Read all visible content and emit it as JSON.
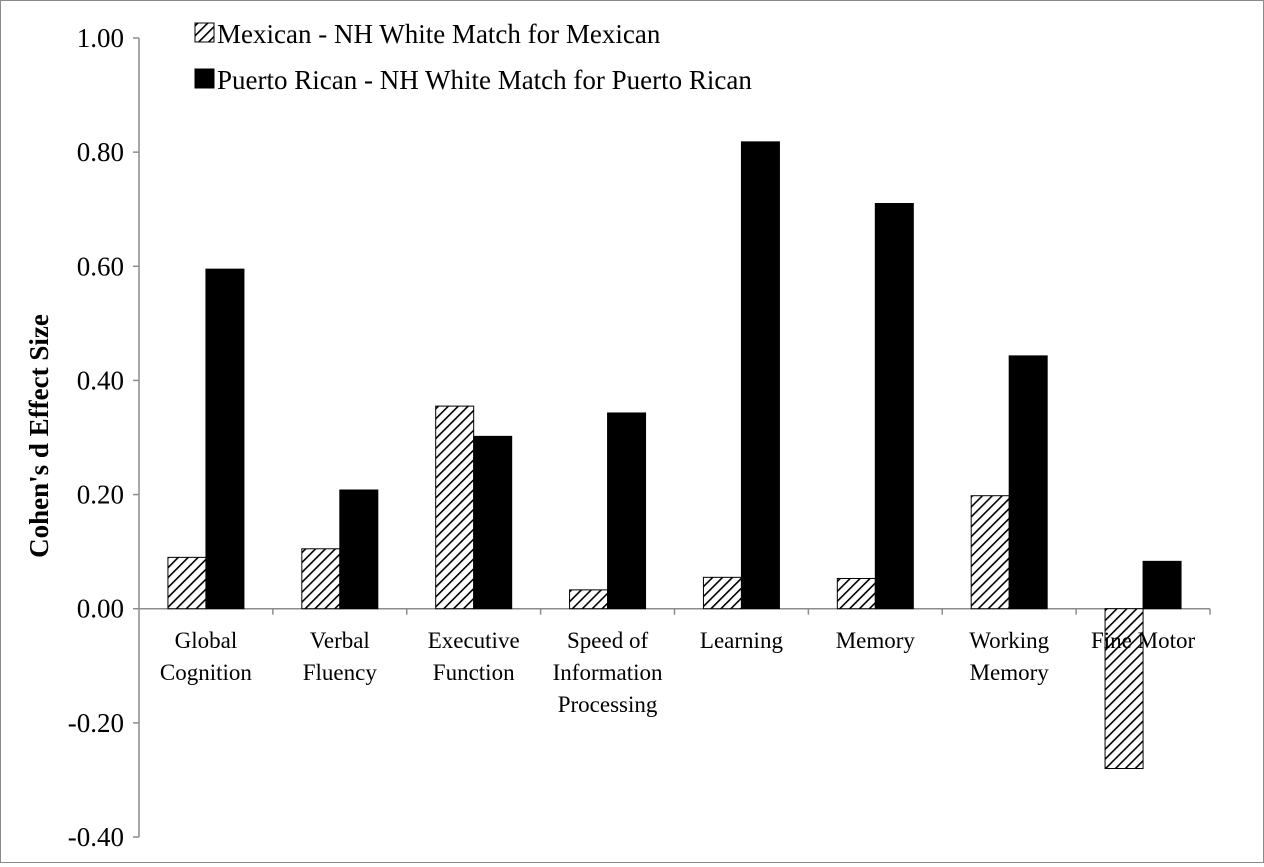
{
  "chart_data": {
    "type": "bar",
    "title": "",
    "xlabel": "",
    "ylabel": "Cohen's d Effect Size",
    "ylim": [
      -0.4,
      1.0
    ],
    "yticks": [
      "1.00",
      "0.80",
      "0.60",
      "0.40",
      "0.20",
      "0.00",
      "-0.20",
      "-0.40"
    ],
    "ytick_values": [
      1.0,
      0.8,
      0.6,
      0.4,
      0.2,
      0.0,
      -0.2,
      -0.4
    ],
    "categories": [
      [
        "Global",
        "Cognition"
      ],
      [
        "Verbal",
        "Fluency"
      ],
      [
        "Executive",
        "Function"
      ],
      [
        "Speed of",
        "Information",
        "Processing"
      ],
      [
        "Learning"
      ],
      [
        "Memory"
      ],
      [
        "Working",
        "Memory"
      ],
      [
        "Fine Motor"
      ]
    ],
    "series": [
      {
        "name": "Mexican - NH White Match for Mexican",
        "pattern": "diagonal-hatch",
        "values": [
          0.09,
          0.105,
          0.355,
          0.033,
          0.055,
          0.053,
          0.198,
          -0.28
        ]
      },
      {
        "name": "Puerto Rican - NH White Match for Puerto Rican",
        "color": "#000000",
        "values": [
          0.595,
          0.208,
          0.302,
          0.343,
          0.818,
          0.71,
          0.443,
          0.083
        ]
      }
    ],
    "grid": false,
    "legend_position": "top-left"
  }
}
